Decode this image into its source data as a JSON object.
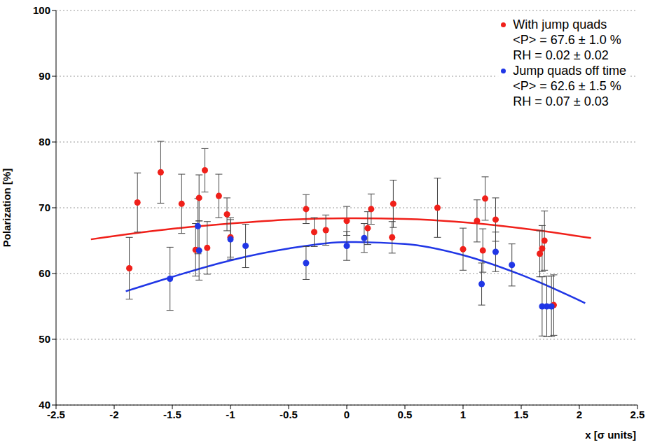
{
  "chart_data": {
    "type": "scatter",
    "xlabel": "x [σ units]",
    "ylabel": "Polarization [%]",
    "xlim": [
      -2.5,
      2.5
    ],
    "xticks": [
      -2.5,
      -2,
      -1.5,
      -1,
      -0.5,
      0,
      0.5,
      1,
      1.5,
      2,
      2.5
    ],
    "ylim": [
      40,
      100
    ],
    "yticks": [
      40,
      50,
      60,
      70,
      80,
      90,
      100
    ],
    "grid": true,
    "legend": "upper right",
    "series": [
      {
        "name": "With jump quads",
        "color": "#f0201a",
        "marker": "circle",
        "annotations": [
          "<P> = 67.6 ± 1.0 %",
          "RH = 0.02 ± 0.02"
        ],
        "x": [
          -1.87,
          -1.8,
          -1.6,
          -1.42,
          -1.3,
          -1.27,
          -1.22,
          -1.2,
          -1.1,
          -1.03,
          -1.0,
          -0.35,
          -0.28,
          -0.18,
          0,
          0.18,
          0.21,
          0.39,
          0.4,
          0.78,
          1.0,
          1.12,
          1.17,
          1.19,
          1.28,
          1.66,
          1.68,
          1.7,
          1.78
        ],
        "values": [
          60.8,
          70.8,
          75.4,
          70.6,
          63.6,
          71.5,
          75.7,
          63.9,
          71.8,
          69.0,
          65.5,
          69.8,
          66.3,
          66.6,
          68.0,
          66.9,
          69.8,
          65.5,
          70.6,
          70.0,
          63.7,
          68.0,
          63.5,
          71.4,
          68.2,
          63.0,
          63.8,
          65.0,
          55.2
        ],
        "errors": [
          4.7,
          4.5,
          4.7,
          4.5,
          4.0,
          3.5,
          3.3,
          4.0,
          3.3,
          2.5,
          3.0,
          2.2,
          2.2,
          2.3,
          2.2,
          2.5,
          2.3,
          2.4,
          3.6,
          4.5,
          3.2,
          3.2,
          3.3,
          3.3,
          3.3,
          3.5,
          3.5,
          4.5,
          4.6
        ],
        "fit_x": [
          -2.2,
          -1.5,
          -1.0,
          -0.5,
          0,
          0.5,
          1.0,
          1.5,
          2.1
        ],
        "fit_values": [
          65.2,
          66.8,
          67.6,
          68.2,
          68.4,
          68.3,
          67.8,
          66.9,
          65.4
        ]
      },
      {
        "name": "Jump quads off time",
        "color": "#2036e6",
        "marker": "circle",
        "annotations": [
          "<P> = 62.6 ± 1.5 %",
          "RH = 0.07 ± 0.03"
        ],
        "x": [
          -1.52,
          -1.28,
          -1.27,
          -1.0,
          -0.87,
          -0.35,
          0.0,
          0.15,
          1.16,
          1.28,
          1.42,
          1.68,
          1.72,
          1.76
        ],
        "values": [
          59.2,
          67.2,
          63.5,
          65.2,
          64.2,
          61.6,
          64.2,
          65.4,
          58.4,
          63.3,
          61.3,
          55.0,
          55.0,
          55.0
        ],
        "errors": [
          4.8,
          4.2,
          4.5,
          3.0,
          3.3,
          2.5,
          2.2,
          2.2,
          3.2,
          3.0,
          3.2,
          4.5,
          4.6,
          4.6
        ],
        "fit_x": [
          -1.9,
          -1.5,
          -1.0,
          -0.5,
          0,
          0.5,
          1.0,
          1.5,
          2.05
        ],
        "fit_values": [
          57.3,
          59.5,
          62.0,
          63.8,
          64.8,
          64.5,
          62.8,
          59.8,
          55.5
        ]
      }
    ]
  }
}
